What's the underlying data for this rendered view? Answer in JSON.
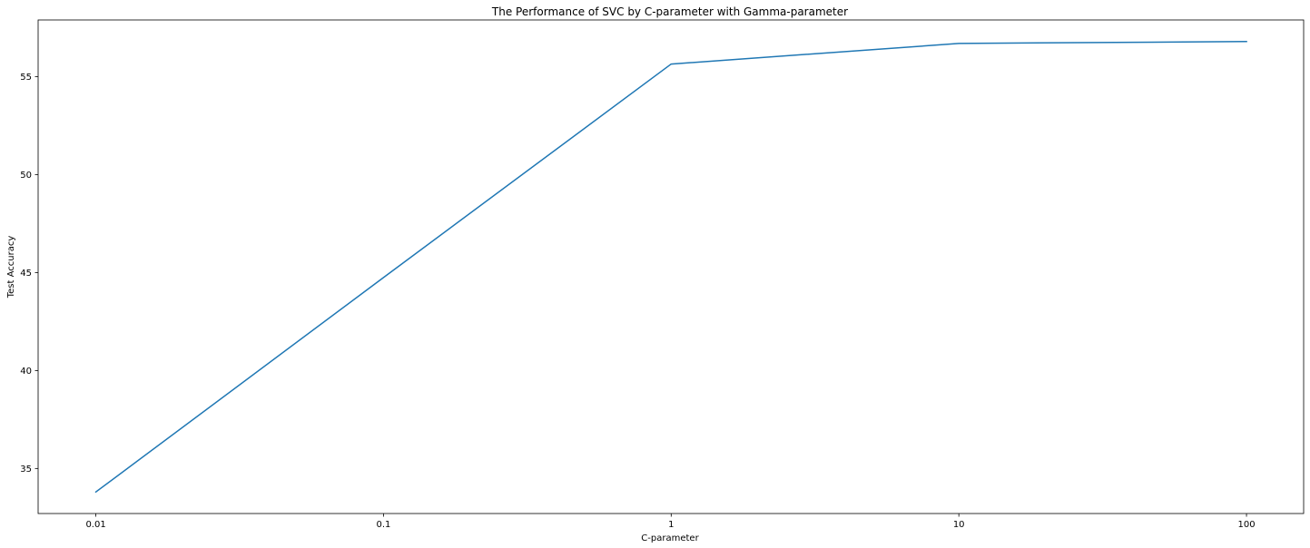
{
  "chart_data": {
    "type": "line",
    "title": "The Performance of SVC by C-parameter with Gamma-parameter",
    "xlabel": "C-parameter",
    "ylabel": "Test Accuracy",
    "x_scale": "log",
    "x_ticks": [
      "0.01",
      "0.1",
      "1",
      "10",
      "100"
    ],
    "y_ticks": [
      35,
      40,
      45,
      50,
      55
    ],
    "xlim": [
      0.0063,
      158
    ],
    "ylim": [
      32.7,
      57.9
    ],
    "grid": false,
    "series": [
      {
        "x": [
          0.01,
          0.1,
          1,
          10,
          100
        ],
        "values": [
          33.8,
          44.75,
          55.65,
          56.7,
          56.8
        ],
        "color": "#1f77b4"
      }
    ]
  }
}
